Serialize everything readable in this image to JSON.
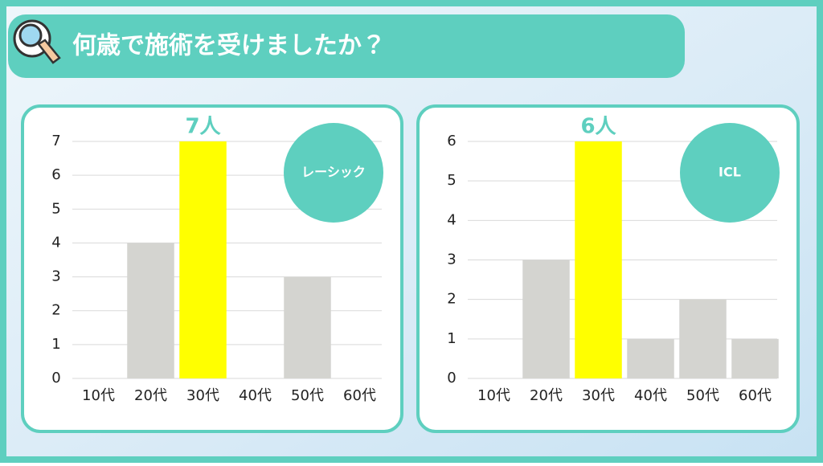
{
  "title": "何歳で施術を受けましたか？",
  "chart_data": [
    {
      "type": "bar",
      "badge": "レーシック",
      "categories": [
        "10代",
        "20代",
        "30代",
        "40代",
        "50代",
        "60代"
      ],
      "values": [
        0,
        4,
        7,
        0,
        3,
        0
      ],
      "value_labels": [
        null,
        null,
        "7人",
        null,
        null,
        null
      ],
      "colors": [
        "#d4d4d0",
        "#d4d4d0",
        "#ffff00",
        "#d4d4d0",
        "#d4d4d0",
        "#d4d4d0"
      ],
      "ylim": [
        0,
        7
      ],
      "yticks": [
        0,
        1,
        2,
        3,
        4,
        5,
        6,
        7
      ],
      "grid": true
    },
    {
      "type": "bar",
      "badge": "ICL",
      "categories": [
        "10代",
        "20代",
        "30代",
        "40代",
        "50代",
        "60代"
      ],
      "values": [
        0,
        3,
        6,
        1,
        2,
        1
      ],
      "value_labels": [
        null,
        null,
        "6人",
        null,
        null,
        null
      ],
      "colors": [
        "#d4d4d0",
        "#d4d4d0",
        "#ffff00",
        "#d4d4d0",
        "#d4d4d0",
        "#d4d4d0"
      ],
      "ylim": [
        0,
        6
      ],
      "yticks": [
        0,
        1,
        2,
        3,
        4,
        5,
        6
      ],
      "grid": true
    }
  ]
}
